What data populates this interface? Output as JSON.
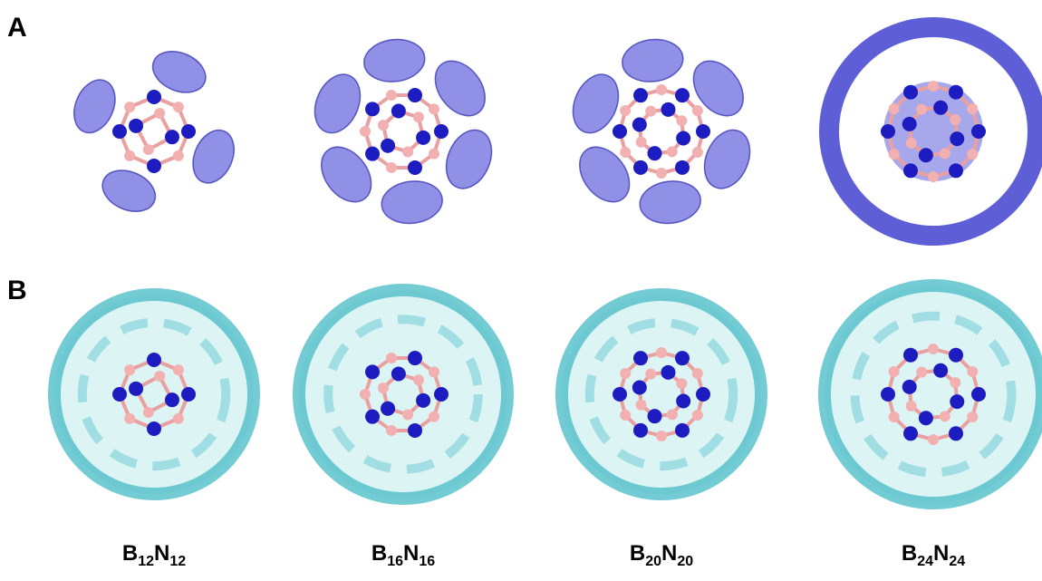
{
  "panels": [
    "A",
    "B"
  ],
  "labels": [
    [
      "B",
      "12",
      "N",
      "12"
    ],
    [
      "B",
      "16",
      "N",
      "16"
    ],
    [
      "B",
      "20",
      "N",
      "20"
    ],
    [
      "B",
      "24",
      "N",
      "24"
    ]
  ]
}
